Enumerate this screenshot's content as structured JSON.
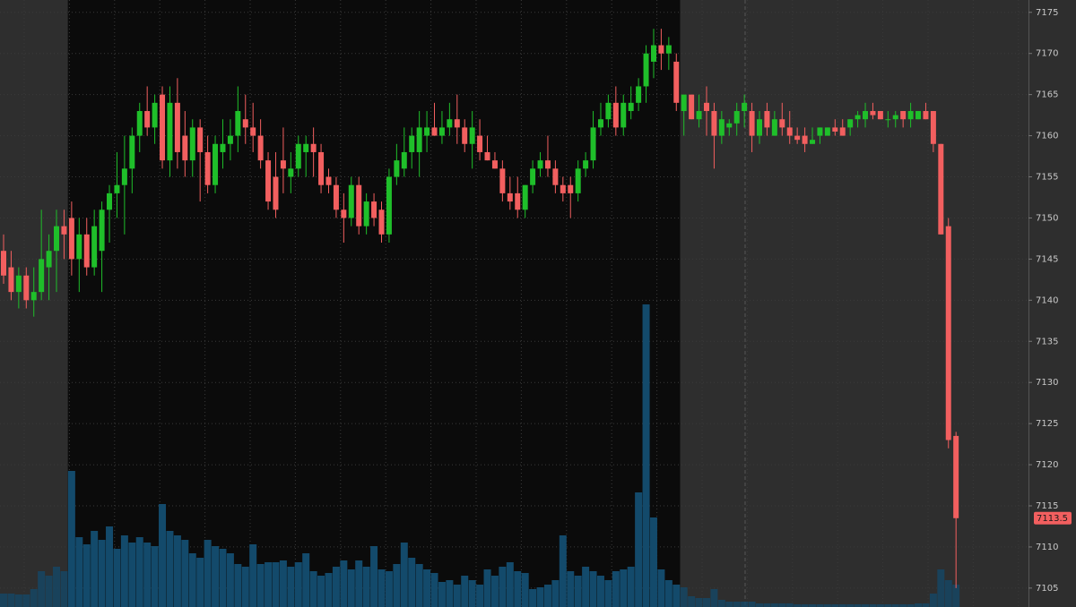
{
  "chart_data": {
    "type": "candlestick",
    "open": [
      7146,
      7144,
      7141,
      7143,
      7140,
      7141,
      7144,
      7146,
      7149,
      7150,
      7145,
      7148,
      7144,
      7146,
      7151,
      7153,
      7154,
      7156,
      7160,
      7163,
      7161,
      7165,
      7157,
      7164,
      7160,
      7157,
      7161,
      7158,
      7154,
      7158,
      7159,
      7160,
      7162,
      7161,
      7160,
      7157,
      7155,
      7157,
      7155,
      7156,
      7158,
      7159,
      7158,
      7155,
      7154,
      7151,
      7150,
      7154,
      7149,
      7152,
      7151,
      7148,
      7155,
      7156,
      7158,
      7158,
      7160,
      7161,
      7160,
      7161,
      7162,
      7161,
      7159,
      7160,
      7158,
      7157,
      7156,
      7153,
      7153,
      7151,
      7154,
      7156,
      7157,
      7156,
      7154,
      7154,
      7153,
      7156,
      7157,
      7161,
      7162,
      7164,
      7161,
      7163,
      7164,
      7166,
      7169,
      7171,
      7170,
      7169,
      7163,
      7165,
      7162,
      7164,
      7163,
      7160,
      7161,
      7161.5,
      7163,
      7163,
      7160,
      7163,
      7160,
      7162,
      7161,
      7160,
      7160,
      7159,
      7160,
      7160,
      7161,
      7161,
      7161,
      7162,
      7162,
      7163,
      7163,
      7162,
      7162,
      7163,
      7162,
      7162,
      7163,
      7163,
      7159,
      7149,
      7123.5
    ],
    "high": [
      7148,
      7146,
      7144,
      7144,
      7144,
      7151,
      7148,
      7151,
      7151,
      7152,
      7150,
      7150,
      7151,
      7152,
      7154,
      7158,
      7160,
      7161,
      7164,
      7166,
      7165,
      7166,
      7166,
      7167,
      7163,
      7162,
      7162,
      7160,
      7160,
      7162,
      7162,
      7166,
      7165,
      7164,
      7162,
      7158,
      7158,
      7161,
      7158,
      7160,
      7160,
      7161,
      7159,
      7156,
      7155,
      7153,
      7155,
      7155,
      7153,
      7153,
      7152,
      7156,
      7159,
      7161,
      7161,
      7163,
      7163,
      7164,
      7163,
      7164,
      7165,
      7162,
      7163,
      7162,
      7160,
      7158,
      7157,
      7155,
      7155,
      7154,
      7157,
      7158,
      7160,
      7157,
      7155,
      7155,
      7157,
      7158,
      7163,
      7164,
      7165,
      7166,
      7165,
      7166,
      7167,
      7171,
      7173,
      7173,
      7172,
      7170,
      7165,
      7165,
      7165,
      7166,
      7164,
      7163,
      7162,
      7164,
      7165,
      7164,
      7163,
      7164,
      7163,
      7164,
      7163,
      7161,
      7161,
      7161,
      7161,
      7161,
      7162,
      7162,
      7162,
      7163,
      7164,
      7164,
      7163,
      7163,
      7163,
      7163,
      7164,
      7163,
      7164,
      7163,
      7159,
      7150,
      7124
    ],
    "low": [
      7142,
      7140,
      7139,
      7139,
      7138,
      7140,
      7140,
      7141,
      7145,
      7143,
      7141,
      7143,
      7143,
      7141,
      7147,
      7150,
      7148,
      7153,
      7158,
      7160,
      7159,
      7156,
      7155,
      7156,
      7155,
      7155,
      7152,
      7153,
      7153,
      7156,
      7157,
      7158,
      7159,
      7158,
      7156,
      7151,
      7150,
      7153,
      7153,
      7155,
      7155,
      7155,
      7153,
      7153,
      7150,
      7147,
      7149,
      7148,
      7148,
      7149,
      7147,
      7147,
      7154,
      7155,
      7156,
      7155,
      7158,
      7160,
      7159,
      7160,
      7159,
      7158,
      7156,
      7157,
      7157,
      7156,
      7152,
      7151,
      7150,
      7150,
      7153,
      7155,
      7155,
      7153,
      7152,
      7150,
      7152,
      7155,
      7156,
      7160,
      7161,
      7160,
      7160,
      7162,
      7163,
      7164,
      7167,
      7168,
      7168,
      7163,
      7160,
      7162,
      7161,
      7160,
      7156,
      7159,
      7160,
      7160,
      7161,
      7158,
      7159,
      7160,
      7160,
      7160,
      7159,
      7159,
      7158,
      7159,
      7159,
      7160,
      7160,
      7160,
      7160,
      7161,
      7161,
      7162,
      7162,
      7161,
      7161,
      7161,
      7161,
      7162,
      7162,
      7158,
      7148,
      7122,
      7105
    ],
    "close": [
      7143,
      7141,
      7143,
      7140,
      7141,
      7145,
      7146,
      7149,
      7148,
      7145,
      7148,
      7144,
      7149,
      7151,
      7153,
      7154,
      7156,
      7160,
      7163,
      7161,
      7164,
      7157,
      7164,
      7158,
      7157,
      7161,
      7158,
      7154,
      7159,
      7159,
      7160,
      7163,
      7161,
      7160,
      7157,
      7152,
      7151,
      7156,
      7156,
      7159,
      7159,
      7158,
      7154,
      7154,
      7151,
      7150,
      7154,
      7149,
      7152,
      7150,
      7148,
      7155,
      7157,
      7158,
      7160,
      7161,
      7161,
      7160,
      7161,
      7162,
      7161,
      7159,
      7161,
      7158,
      7157,
      7156,
      7153,
      7152,
      7151,
      7154,
      7156,
      7157,
      7156,
      7154,
      7153,
      7153,
      7156,
      7157,
      7161,
      7162,
      7164,
      7161,
      7164,
      7164,
      7166,
      7170,
      7171,
      7170,
      7171,
      7164,
      7165,
      7162,
      7163,
      7163,
      7160,
      7162,
      7161.5,
      7163,
      7164,
      7160,
      7162,
      7161,
      7162,
      7161,
      7160,
      7159.5,
      7159,
      7159.5,
      7161,
      7161,
      7160.5,
      7160,
      7162,
      7162.5,
      7163,
      7162.5,
      7162,
      7162,
      7162.5,
      7162,
      7163,
      7163,
      7162,
      7159,
      7148,
      7123,
      7113.5
    ],
    "volume": [
      15,
      15,
      14,
      14,
      20,
      40,
      35,
      45,
      40,
      152,
      78,
      70,
      85,
      75,
      90,
      65,
      80,
      72,
      78,
      72,
      68,
      115,
      85,
      80,
      75,
      60,
      55,
      75,
      68,
      65,
      60,
      48,
      45,
      70,
      48,
      50,
      50,
      52,
      45,
      50,
      60,
      40,
      35,
      38,
      45,
      52,
      42,
      52,
      45,
      68,
      42,
      40,
      48,
      72,
      55,
      48,
      42,
      38,
      28,
      30,
      25,
      35,
      30,
      25,
      42,
      35,
      45,
      50,
      40,
      38,
      20,
      22,
      25,
      30,
      80,
      40,
      35,
      45,
      40,
      35,
      30,
      40,
      42,
      45,
      128,
      338,
      100,
      42,
      30,
      25,
      22,
      12,
      10,
      10,
      20,
      8,
      6,
      6,
      6,
      6,
      4,
      4,
      4,
      4,
      4,
      3,
      3,
      3,
      3,
      3,
      3,
      3,
      3,
      3,
      3,
      3,
      3,
      3,
      3,
      3,
      3,
      4,
      4,
      15,
      42,
      30,
      25
    ],
    "ylim": [
      7102.7,
      7176.5
    ],
    "yticks": [
      7105,
      7110,
      7115,
      7120,
      7125,
      7130,
      7135,
      7140,
      7145,
      7150,
      7155,
      7160,
      7165,
      7170,
      7175
    ],
    "volume_lim": [
      0,
      678
    ],
    "last_price": 7113.5,
    "up_color": "#1fbf2a",
    "down_color": "#f25f5f",
    "volume_color": "#134a6b",
    "grid": true
  }
}
